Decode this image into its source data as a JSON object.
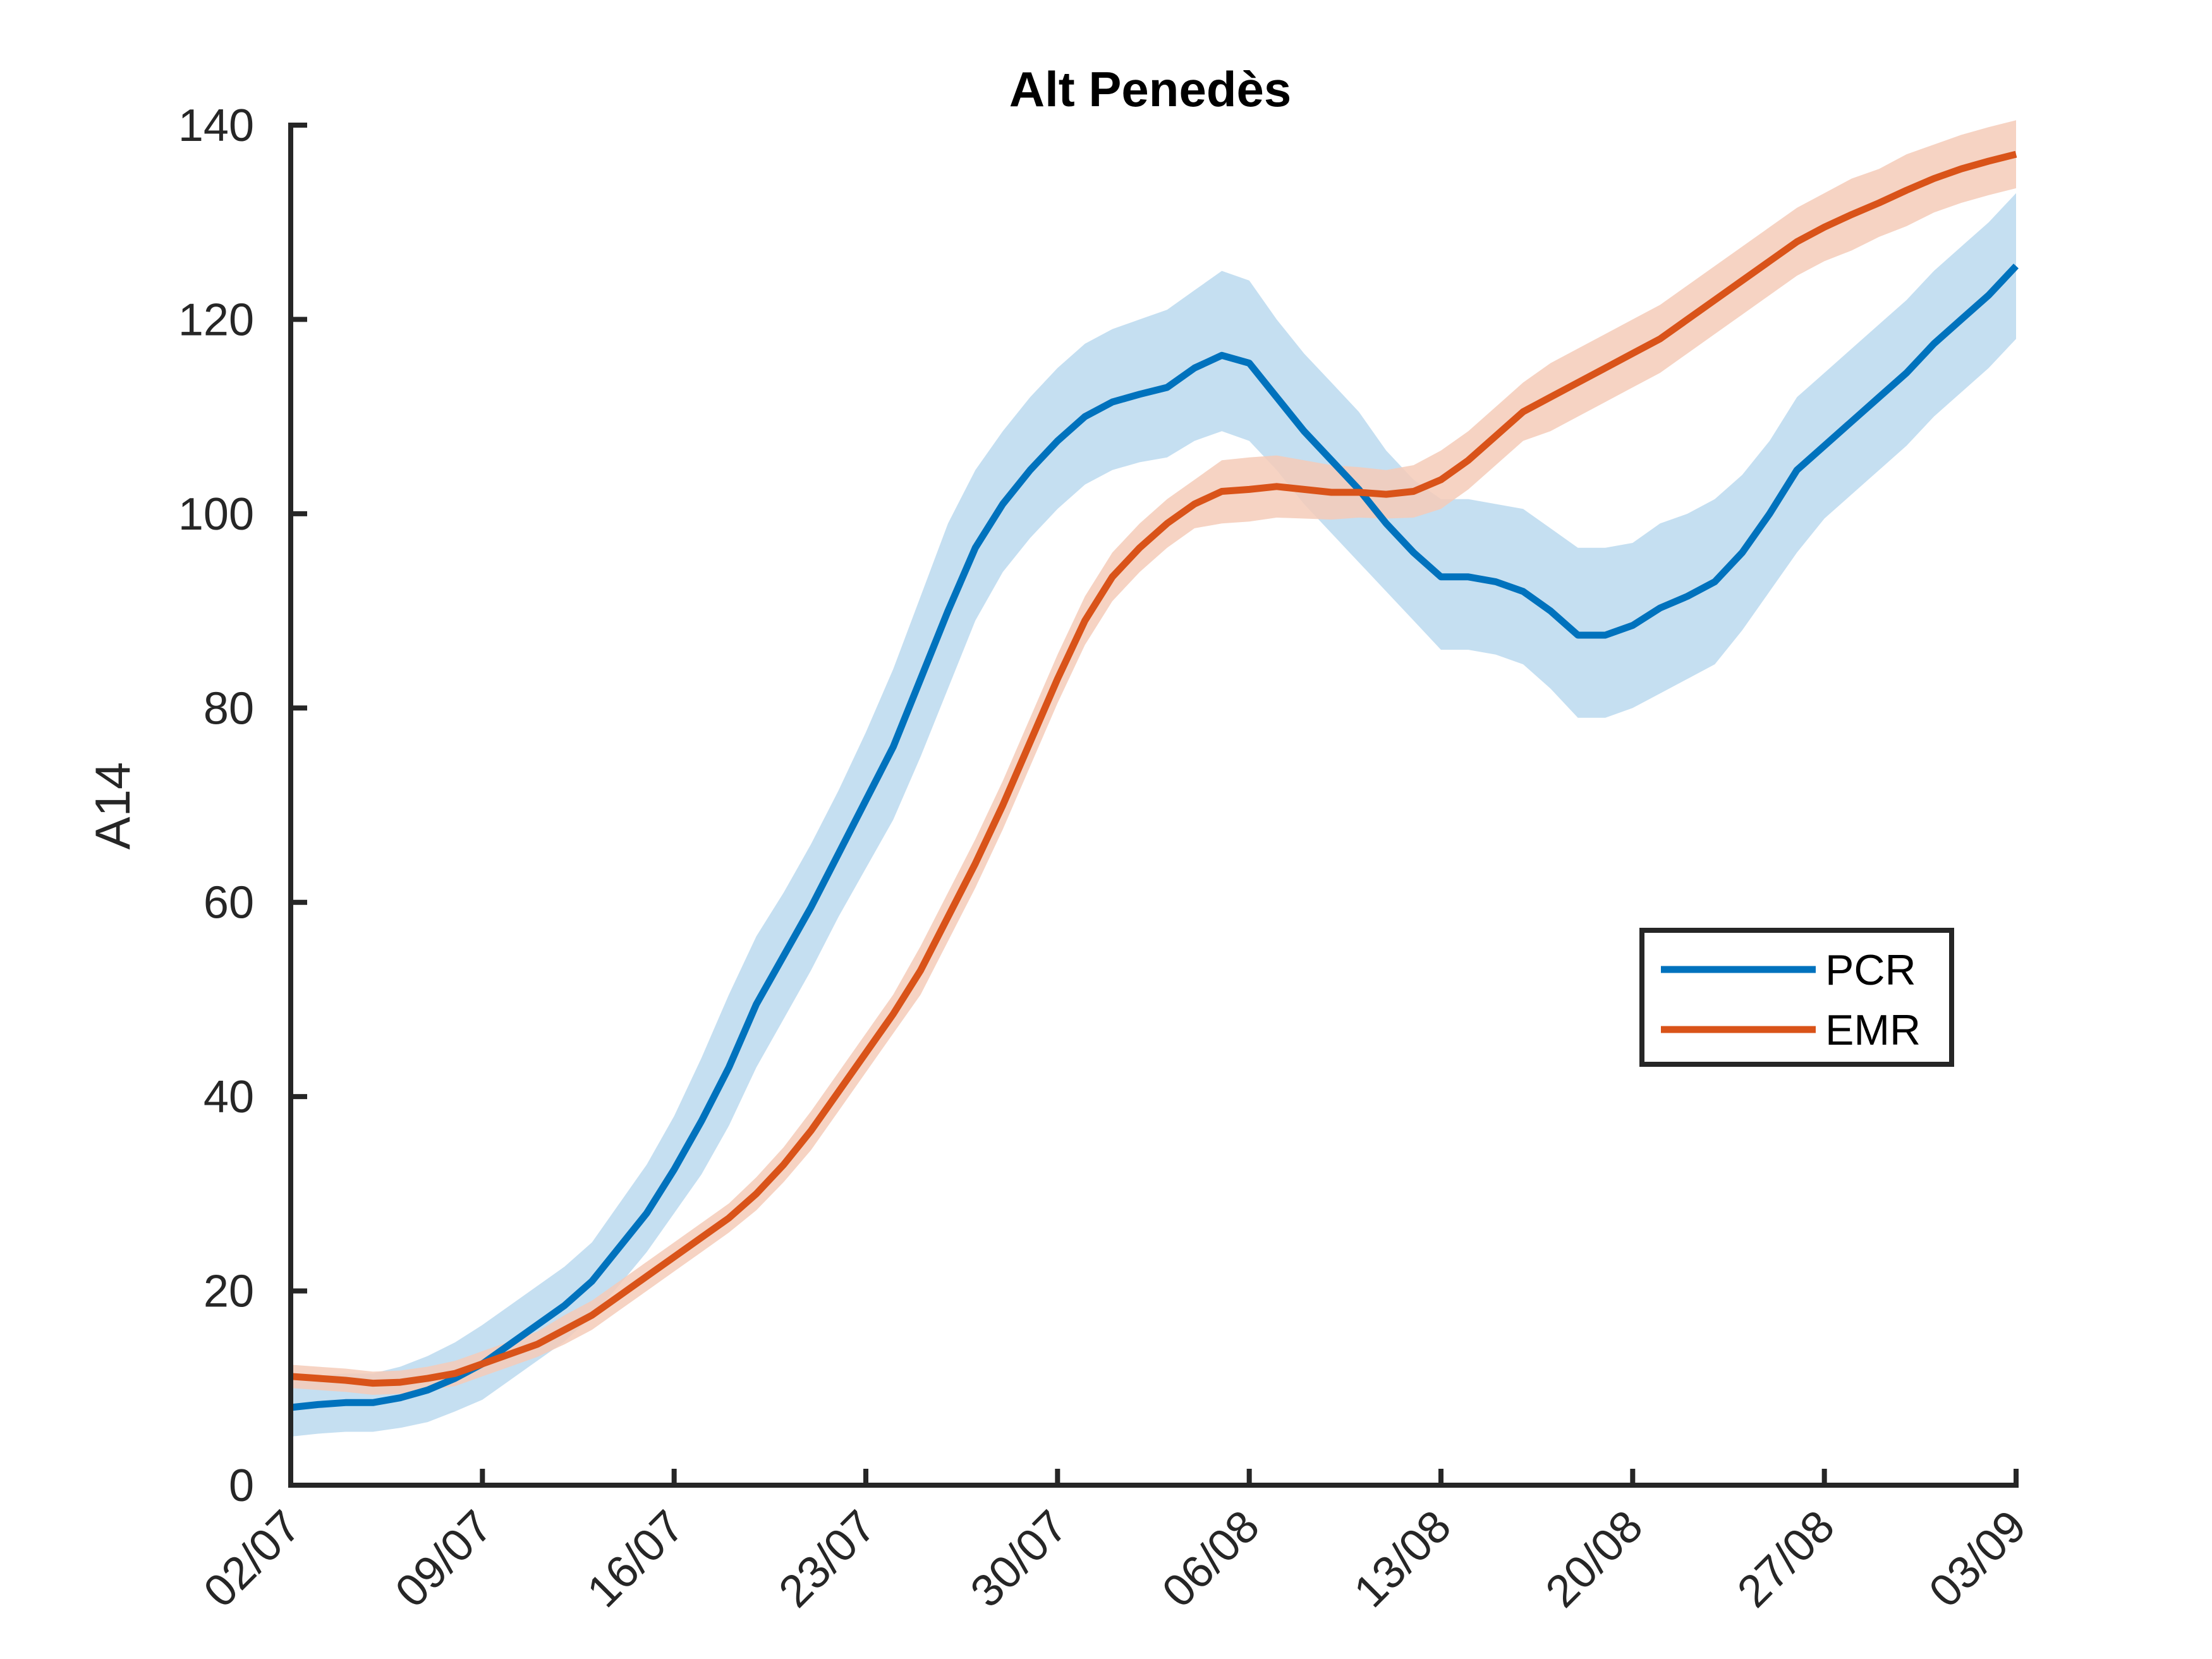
{
  "chart_data": {
    "type": "line",
    "title": "Alt Penedès",
    "xlabel": "",
    "ylabel": "A14",
    "xlim": [
      0,
      63
    ],
    "ylim": [
      0,
      140
    ],
    "yticks": [
      0,
      20,
      40,
      60,
      80,
      100,
      120,
      140
    ],
    "xticks": [
      {
        "pos": 0,
        "label": "02/07"
      },
      {
        "pos": 7,
        "label": "09/07"
      },
      {
        "pos": 14,
        "label": "16/07"
      },
      {
        "pos": 21,
        "label": "23/07"
      },
      {
        "pos": 28,
        "label": "30/07"
      },
      {
        "pos": 35,
        "label": "06/08"
      },
      {
        "pos": 42,
        "label": "13/08"
      },
      {
        "pos": 49,
        "label": "20/08"
      },
      {
        "pos": 56,
        "label": "27/08"
      },
      {
        "pos": 63,
        "label": "03/09"
      }
    ],
    "grid": false,
    "legend_position": "right",
    "series": [
      {
        "name": "PCR",
        "color": "#0072BD",
        "band_color": "#BBD9EE",
        "x": [
          0,
          1,
          2,
          3,
          4,
          5,
          6,
          7,
          8,
          9,
          10,
          11,
          12,
          13,
          14,
          15,
          16,
          17,
          18,
          19,
          20,
          21,
          22,
          23,
          24,
          25,
          26,
          27,
          28,
          29,
          30,
          31,
          32,
          33,
          34,
          35,
          36,
          37,
          38,
          39,
          40,
          41,
          42,
          43,
          44,
          45,
          46,
          47,
          48,
          49,
          50,
          51,
          52,
          53,
          54,
          55,
          56,
          57,
          58,
          59,
          60,
          61,
          62,
          63
        ],
        "values": [
          8,
          8.3,
          8.5,
          8.5,
          9,
          9.8,
          11,
          12.5,
          14.5,
          16.5,
          18.5,
          21,
          24.5,
          28,
          32.5,
          37.5,
          43,
          49.5,
          54.5,
          59.5,
          65,
          70.5,
          76,
          83,
          90,
          96.5,
          101,
          104.5,
          107.5,
          110,
          111.5,
          112.3,
          113,
          115,
          116.3,
          115.5,
          112,
          108.5,
          105.5,
          102.5,
          99,
          96,
          93.5,
          93.5,
          93,
          92,
          90,
          87.5,
          87.5,
          88.5,
          90.3,
          91.5,
          93,
          96,
          100,
          104.5,
          107,
          109.5,
          112,
          114.5,
          117.5,
          120,
          122.5,
          125.5
        ],
        "upper": [
          11,
          11.3,
          11.5,
          11.5,
          12.2,
          13.3,
          14.7,
          16.5,
          18.5,
          20.5,
          22.5,
          25,
          29,
          33,
          38,
          44,
          50.5,
          56.5,
          61,
          66,
          71.5,
          77.5,
          84,
          91.5,
          99,
          104.5,
          108.5,
          112,
          115,
          117.5,
          119,
          120,
          121,
          123,
          125,
          124,
          120,
          116.5,
          113.5,
          110.5,
          106.5,
          103.5,
          101.5,
          101.5,
          101,
          100.5,
          98.5,
          96.5,
          96.5,
          97,
          99,
          100,
          101.5,
          104,
          107.5,
          112,
          114.5,
          117,
          119.5,
          122,
          125,
          127.5,
          130,
          133
        ],
        "lower": [
          5,
          5.3,
          5.5,
          5.5,
          5.9,
          6.5,
          7.6,
          8.8,
          10.8,
          12.8,
          14.8,
          17.4,
          20.6,
          24,
          28,
          32,
          37,
          43,
          48,
          53,
          58.5,
          63.5,
          68.5,
          75,
          82,
          89,
          94,
          97.5,
          100.5,
          103,
          104.5,
          105.3,
          105.8,
          107.5,
          108.5,
          107.5,
          104.5,
          101,
          98,
          95,
          92,
          89,
          86,
          86,
          85.5,
          84.5,
          82,
          79,
          79,
          80,
          81.5,
          83,
          84.5,
          88,
          92,
          96,
          99.5,
          102,
          104.5,
          107,
          110,
          112.5,
          115,
          118
        ]
      },
      {
        "name": "EMR",
        "color": "#D95319",
        "band_color": "#F5CBB8",
        "x": [
          0,
          1,
          2,
          3,
          4,
          5,
          6,
          7,
          8,
          9,
          10,
          11,
          12,
          13,
          14,
          15,
          16,
          17,
          18,
          19,
          20,
          21,
          22,
          23,
          24,
          25,
          26,
          27,
          28,
          29,
          30,
          31,
          32,
          33,
          34,
          35,
          36,
          37,
          38,
          39,
          40,
          41,
          42,
          43,
          44,
          45,
          46,
          47,
          48,
          49,
          50,
          51,
          52,
          53,
          54,
          55,
          56,
          57,
          58,
          59,
          60,
          61,
          62,
          63
        ],
        "values": [
          11.2,
          11,
          10.8,
          10.5,
          10.6,
          11,
          11.5,
          12.5,
          13.5,
          14.5,
          16,
          17.5,
          19.5,
          21.5,
          23.5,
          25.5,
          27.5,
          30,
          33,
          36.5,
          40.5,
          44.5,
          48.5,
          53,
          58.5,
          64,
          70,
          76.5,
          83,
          89,
          93.5,
          96.5,
          99,
          101,
          102.3,
          102.5,
          102.8,
          102.5,
          102.2,
          102.2,
          102,
          102.3,
          103.5,
          105.5,
          108,
          110.5,
          112,
          113.5,
          115,
          116.5,
          118,
          120,
          122,
          124,
          126,
          128,
          129.5,
          130.8,
          132,
          133.3,
          134.5,
          135.5,
          136.3,
          137
        ],
        "upper": [
          12.4,
          12.2,
          12,
          11.7,
          11.8,
          12.2,
          12.8,
          13.8,
          14.8,
          15.8,
          17.5,
          19,
          21,
          23,
          25,
          27,
          29,
          31.7,
          34.8,
          38.5,
          42.5,
          46.5,
          50.5,
          55.5,
          61,
          66.5,
          72.5,
          79,
          85.5,
          91.5,
          96,
          99,
          101.5,
          103.5,
          105.5,
          105.8,
          106,
          105.5,
          105,
          104.8,
          104.5,
          105,
          106.5,
          108.5,
          111,
          113.5,
          115.5,
          117,
          118.5,
          120,
          121.5,
          123.5,
          125.5,
          127.5,
          129.5,
          131.5,
          133,
          134.5,
          135.5,
          137,
          138,
          139,
          139.8,
          140.5
        ],
        "lower": [
          10,
          9.8,
          9.6,
          9.3,
          9.4,
          9.8,
          10.2,
          11.2,
          12.2,
          13.2,
          14.5,
          16,
          18,
          20,
          22,
          24,
          26,
          28.3,
          31.2,
          34.5,
          38.5,
          42.5,
          46.5,
          50.5,
          56,
          61.5,
          67.5,
          74,
          80.5,
          86.5,
          91,
          94,
          96.5,
          98.5,
          99,
          99.2,
          99.6,
          99.5,
          99.4,
          99.6,
          99.5,
          99.6,
          100.5,
          102.5,
          105,
          107.5,
          108.5,
          110,
          111.5,
          113,
          114.5,
          116.5,
          118.5,
          120.5,
          122.5,
          124.5,
          126,
          127.1,
          128.5,
          129.6,
          131,
          132,
          132.8,
          133.5
        ]
      }
    ]
  }
}
